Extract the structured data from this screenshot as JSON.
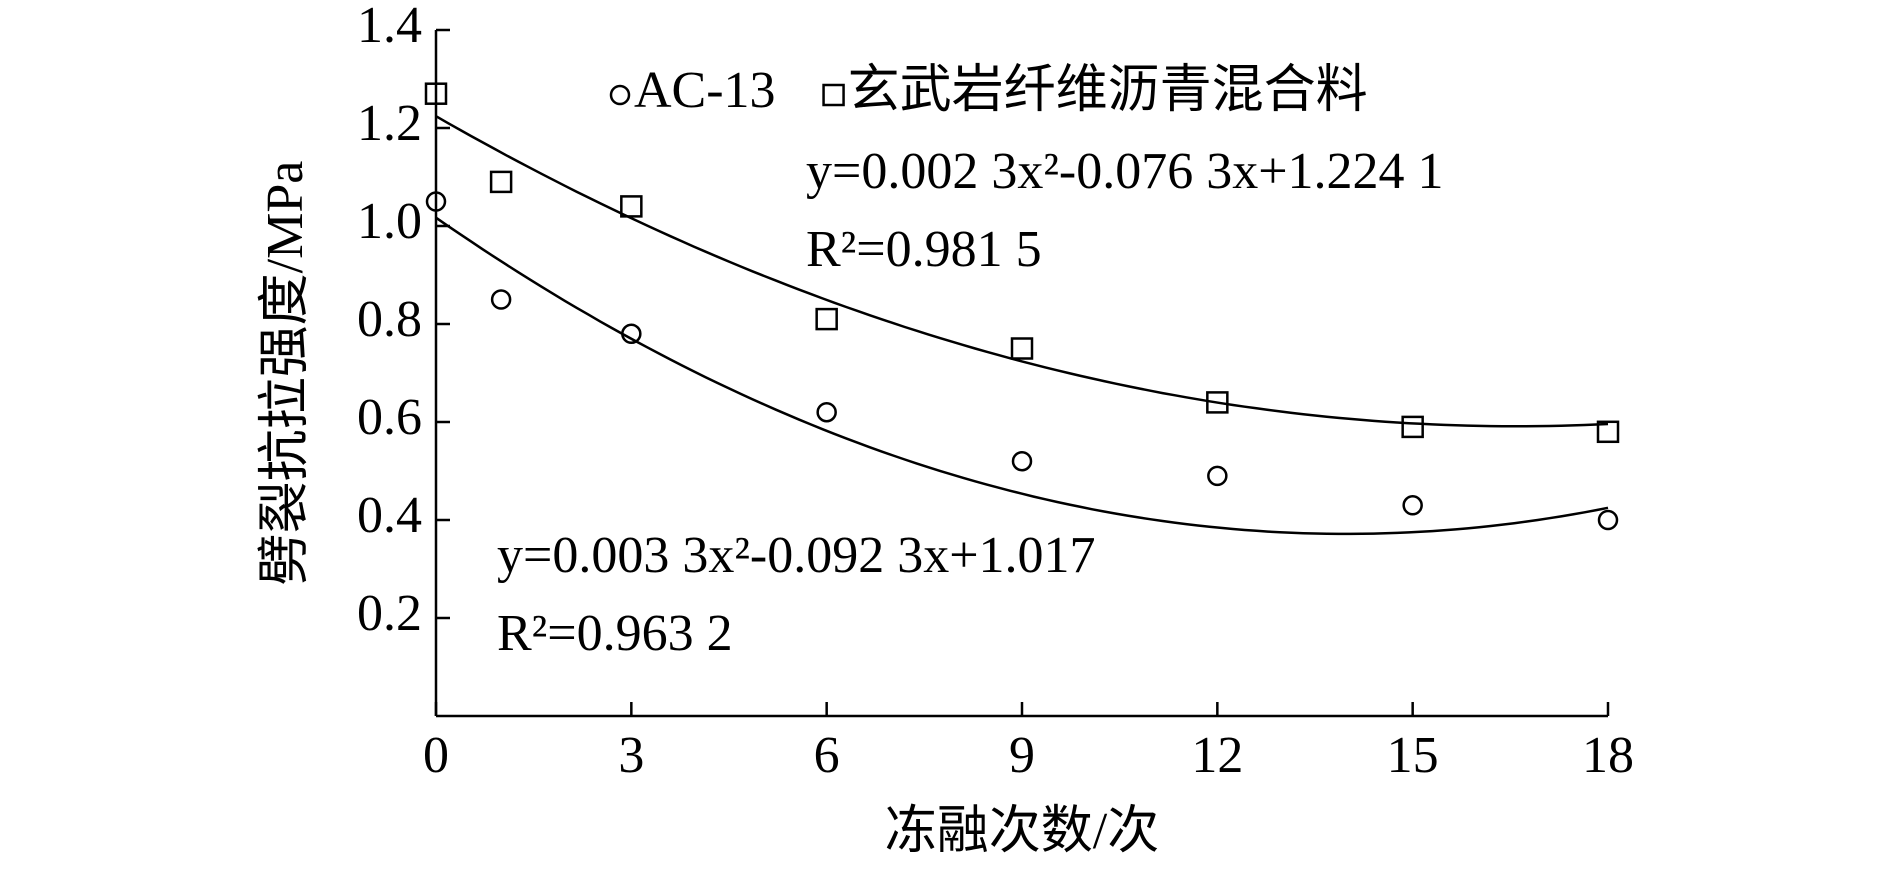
{
  "chart_data": {
    "type": "scatter",
    "x_label": "冻融次数/次",
    "y_label": "劈裂抗拉强度/MPa",
    "x": [
      0,
      1,
      3,
      6,
      9,
      12,
      15,
      18
    ],
    "series": [
      {
        "name": "AC-13",
        "marker": "circle",
        "color": "#000000",
        "values": [
          1.05,
          0.85,
          0.78,
          0.62,
          0.52,
          0.49,
          0.43,
          0.4
        ],
        "trendline": {
          "coefficients": [
            1.017,
            -0.0923,
            0.0033
          ],
          "equation": "y=0.003 3x²-0.092 3x+1.017",
          "r2": "R²=0.963 2"
        }
      },
      {
        "name": "玄武岩纤维沥青混合料",
        "marker": "square",
        "color": "#000000",
        "values": [
          1.27,
          1.09,
          1.04,
          0.81,
          0.75,
          0.64,
          0.59,
          0.58
        ],
        "trendline": {
          "coefficients": [
            1.2241,
            -0.0763,
            0.0023
          ],
          "equation": "y=0.002 3x²-0.076 3x+1.224 1",
          "r2": "R²=0.981 5"
        }
      }
    ],
    "xlim": [
      0,
      18
    ],
    "xticks": [
      0,
      3,
      6,
      9,
      12,
      15,
      18
    ],
    "ylim": [
      0,
      1.4
    ],
    "yticks": [
      0.2,
      0.4,
      0.6,
      0.8,
      {
        "value": 1,
        "label": "1.0"
      },
      1.2,
      1.4
    ],
    "grid": false,
    "legend": "top"
  }
}
